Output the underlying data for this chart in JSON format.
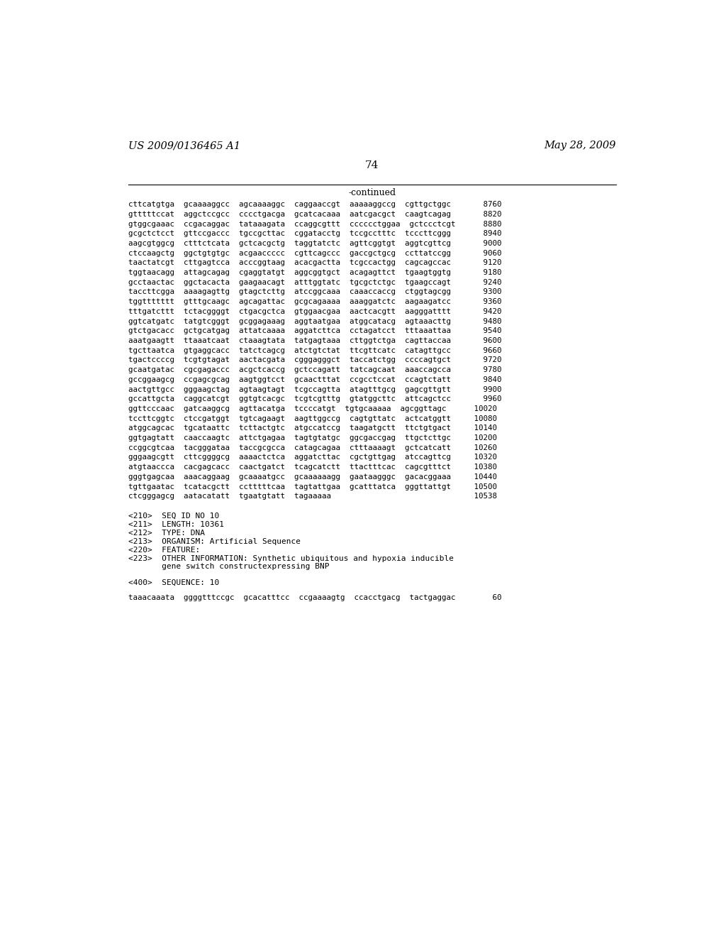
{
  "header_left": "US 2009/0136465 A1",
  "header_right": "May 28, 2009",
  "page_number": "74",
  "continued_label": "-continued",
  "background_color": "#ffffff",
  "text_color": "#000000",
  "sequence_lines": [
    "cttcatgtga  gcaaaaggcc  agcaaaaggc  caggaaccgt  aaaaaggccg  cgttgctggc       8760",
    "gtttttccat  aggctccgcc  cccctgacga  gcatcacaaa  aatcgacgct  caagtcagag       8820",
    "gtggcgaaac  ccgacaggac  tataaagata  ccaggcgttt  cccccctggaa  gctccctcgt      8880",
    "gcgctctcct  gttccgaccc  tgccgcttac  cggatacctg  tccgcctttc  tcccttcggg       8940",
    "aagcgtggcg  ctttctcata  gctcacgctg  taggtatctc  agttcggtgt  aggtcgttcg       9000",
    "ctccaagctg  ggctgtgtgc  acgaaccccc  cgttcagccc  gaccgctgcg  ccttatccgg       9060",
    "taactatcgt  cttgagtcca  acccggtaag  acacgactta  tcgccactgg  cagcagccac       9120",
    "tggtaacagg  attagcagag  cgaggtatgt  aggcggtgct  acagagttct  tgaagtggtg       9180",
    "gcctaactac  ggctacacta  gaagaacagt  atttggtatc  tgcgctctgc  tgaagccagt       9240",
    "taccttcgga  aaaagagttg  gtagctcttg  atccggcaaa  caaaccaccg  ctggtagcgg       9300",
    "tggttttttt  gtttgcaagc  agcagattac  gcgcagaaaa  aaaggatctc  aagaagatcc       9360",
    "tttgatcttt  tctacggggt  ctgacgctca  gtggaacgaa  aactcacgtt  aagggatttt       9420",
    "ggtcatgatc  tatgtcgggt  gcggagaaag  aggtaatgaa  atggcatacg  agtaaacttg       9480",
    "gtctgacacc  gctgcatgag  attatcaaaa  aggatcttca  cctagatcct  tttaaattaa       9540",
    "aaatgaagtt  ttaaatcaat  ctaaagtata  tatgagtaaa  cttggtctga  cagttaccaa       9600",
    "tgcttaatca  gtgaggcacc  tatctcagcg  atctgtctat  ttcgttcatc  catagttgcc       9660",
    "tgactccccg  tcgtgtagat  aactacgata  cgggagggct  taccatctgg  ccccagtgct       9720",
    "gcaatgatac  cgcgagaccc  acgctcaccg  gctccagatt  tatcagcaat  aaaccagcca       9780",
    "gccggaagcg  ccgagcgcag  aagtggtcct  gcaactttat  ccgcctccat  ccagtctatt       9840",
    "aactgttgcc  gggaagctag  agtaagtagt  tcgccagtta  atagtttgcg  gagcgttgtt       9900",
    "gccattgcta  caggcatcgt  ggtgtcacgc  tcgtcgtttg  gtatggcttc  attcagctcc       9960",
    "ggttcccaac  gatcaaggcg  agttacatga  tccccatgt  tgtgcaaaaa  agcggttagc      10020",
    "tccttcggtc  ctccgatggt  tgtcagaagt  aagttggccg  cagtgttatc  actcatggtt     10080",
    "atggcagcac  tgcataattc  tcttactgtc  atgccatccg  taagatgctt  ttctgtgact     10140",
    "ggtgagtatt  caaccaagtc  attctgagaa  tagtgtatgc  ggcgaccgag  ttgctcttgc     10200",
    "ccggcgtcaa  tacgggataa  taccgcgcca  catagcagaa  ctttaaaagt  gctcatcatt     10260",
    "gggaagcgtt  cttcggggcg  aaaactctca  aggatcttac  cgctgttgag  atccagttcg     10320",
    "atgtaaccca  cacgagcacc  caactgatct  tcagcatctt  ttactttcac  cagcgtttct     10380",
    "gggtgagcaa  aaacaggaag  gcaaaatgcc  gcaaaaaagg  gaataagggc  gacacggaaa     10440",
    "tgttgaatac  tcatacgctt  cctttttcaa  tagtattgaa  gcatttatca  gggttattgt     10500",
    "ctcgggagcg  aatacatatt  tgaatgtatt  tagaaaaa                               10538"
  ],
  "metadata_lines": [
    "<210>  SEQ ID NO 10",
    "<211>  LENGTH: 10361",
    "<212>  TYPE: DNA",
    "<213>  ORGANISM: Artificial Sequence",
    "<220>  FEATURE:",
    "<223>  OTHER INFORMATION: Synthetic ubiquitous and hypoxia inducible",
    "       gene switch constructexpressing BNP"
  ],
  "sequence_label": "<400>  SEQUENCE: 10",
  "last_sequence": "taaacaaata  ggggtttccgc  gcacatttcc  ccgaaaagtg  ccacctgacg  tactgaggac        60"
}
